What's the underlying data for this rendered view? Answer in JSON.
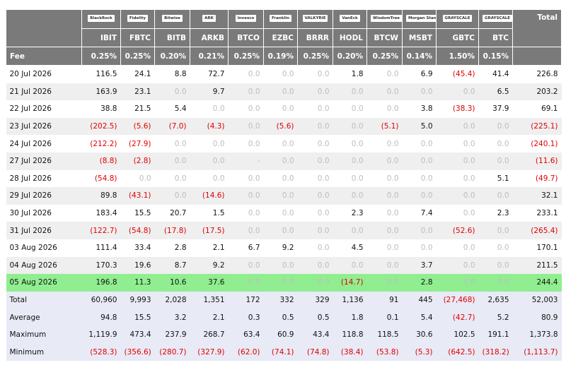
{
  "header": {
    "logos": [
      "BlackRock",
      "Fidelity",
      "Bitwise",
      "ARK",
      "Invesco",
      "Franklin",
      "VALKYRIE",
      "VanEck",
      "WisdomTree",
      "Morgan Stanley",
      "GRAYSCALE",
      "GRAYSCALE"
    ],
    "tickers": [
      "IBIT",
      "FBTC",
      "BITB",
      "ARKB",
      "BTCO",
      "EZBC",
      "BRRR",
      "HODL",
      "BTCW",
      "MSBT",
      "GBTC",
      "BTC"
    ],
    "total": "Total"
  },
  "fee": {
    "label": "Fee",
    "values": [
      "0.25%",
      "0.25%",
      "0.20%",
      "0.21%",
      "0.25%",
      "0.19%",
      "0.25%",
      "0.20%",
      "0.25%",
      "0.14%",
      "1.50%",
      "0.15%"
    ]
  },
  "rows": [
    {
      "date": "20 Jul 2026",
      "values": [
        "116.5",
        "24.1",
        "8.8",
        "72.7",
        "0.0",
        "0.0",
        "0.0",
        "1.8",
        "0.0",
        "6.9",
        "(45.4)",
        "41.4",
        "226.8"
      ]
    },
    {
      "date": "21 Jul 2026",
      "values": [
        "163.9",
        "23.1",
        "0.0",
        "9.7",
        "0.0",
        "0.0",
        "0.0",
        "0.0",
        "0.0",
        "0.0",
        "0.0",
        "6.5",
        "203.2"
      ]
    },
    {
      "date": "22 Jul 2026",
      "values": [
        "38.8",
        "21.5",
        "5.4",
        "0.0",
        "0.0",
        "0.0",
        "0.0",
        "0.0",
        "0.0",
        "3.8",
        "(38.3)",
        "37.9",
        "69.1"
      ]
    },
    {
      "date": "23 Jul 2026",
      "values": [
        "(202.5)",
        "(5.6)",
        "(7.0)",
        "(4.3)",
        "0.0",
        "(5.6)",
        "0.0",
        "0.0",
        "(5.1)",
        "5.0",
        "0.0",
        "0.0",
        "(225.1)"
      ]
    },
    {
      "date": "24 Jul 2026",
      "values": [
        "(212.2)",
        "(27.9)",
        "0.0",
        "0.0",
        "0.0",
        "0.0",
        "0.0",
        "0.0",
        "0.0",
        "0.0",
        "0.0",
        "0.0",
        "(240.1)"
      ]
    },
    {
      "date": "27 Jul 2026",
      "values": [
        "(8.8)",
        "(2.8)",
        "0.0",
        "0.0",
        "-",
        "0.0",
        "0.0",
        "0.0",
        "0.0",
        "0.0",
        "0.0",
        "0.0",
        "(11.6)"
      ]
    },
    {
      "date": "28 Jul 2026",
      "values": [
        "(54.8)",
        "0.0",
        "0.0",
        "0.0",
        "0.0",
        "0.0",
        "0.0",
        "0.0",
        "0.0",
        "0.0",
        "0.0",
        "5.1",
        "(49.7)"
      ]
    },
    {
      "date": "29 Jul 2026",
      "values": [
        "89.8",
        "(43.1)",
        "0.0",
        "(14.6)",
        "0.0",
        "0.0",
        "0.0",
        "0.0",
        "0.0",
        "0.0",
        "0.0",
        "0.0",
        "32.1"
      ]
    },
    {
      "date": "30 Jul 2026",
      "values": [
        "183.4",
        "15.5",
        "20.7",
        "1.5",
        "0.0",
        "0.0",
        "0.0",
        "2.3",
        "0.0",
        "7.4",
        "0.0",
        "2.3",
        "233.1"
      ]
    },
    {
      "date": "31 Jul 2026",
      "values": [
        "(122.7)",
        "(54.8)",
        "(17.8)",
        "(17.5)",
        "0.0",
        "0.0",
        "0.0",
        "0.0",
        "0.0",
        "0.0",
        "(52.6)",
        "0.0",
        "(265.4)"
      ]
    },
    {
      "date": "03 Aug 2026",
      "values": [
        "111.4",
        "33.4",
        "2.8",
        "2.1",
        "6.7",
        "9.2",
        "0.0",
        "4.5",
        "0.0",
        "0.0",
        "0.0",
        "0.0",
        "170.1"
      ]
    },
    {
      "date": "04 Aug 2026",
      "values": [
        "170.3",
        "19.6",
        "8.7",
        "9.2",
        "0.0",
        "0.0",
        "0.0",
        "0.0",
        "0.0",
        "3.7",
        "0.0",
        "0.0",
        "211.5"
      ]
    },
    {
      "date": "05 Aug 2026",
      "values": [
        "196.8",
        "11.3",
        "10.6",
        "37.6",
        "0.0",
        "0.0",
        "0.0",
        "(14.7)",
        "0.0",
        "2.8",
        "0.0",
        "0.0",
        "244.4"
      ]
    }
  ],
  "summary": [
    {
      "label": "Total",
      "values": [
        "60,960",
        "9,993",
        "2,028",
        "1,351",
        "172",
        "332",
        "329",
        "1,136",
        "91",
        "445",
        "(27,468)",
        "2,635",
        "52,003"
      ]
    },
    {
      "label": "Average",
      "values": [
        "94.8",
        "15.5",
        "3.2",
        "2.1",
        "0.3",
        "0.5",
        "0.5",
        "1.8",
        "0.1",
        "5.4",
        "(42.7)",
        "5.2",
        "80.9"
      ]
    },
    {
      "label": "Maximum",
      "values": [
        "1,119.9",
        "473.4",
        "237.9",
        "268.7",
        "63.4",
        "60.9",
        "43.4",
        "118.8",
        "118.5",
        "30.6",
        "102.5",
        "191.1",
        "1,373.8"
      ]
    },
    {
      "label": "Minimum",
      "values": [
        "(528.3)",
        "(356.6)",
        "(280.7)",
        "(327.9)",
        "(62.0)",
        "(74.1)",
        "(74.8)",
        "(38.4)",
        "(53.8)",
        "(5.3)",
        "(642.5)",
        "(318.2)",
        "(1,113.7)"
      ]
    }
  ]
}
